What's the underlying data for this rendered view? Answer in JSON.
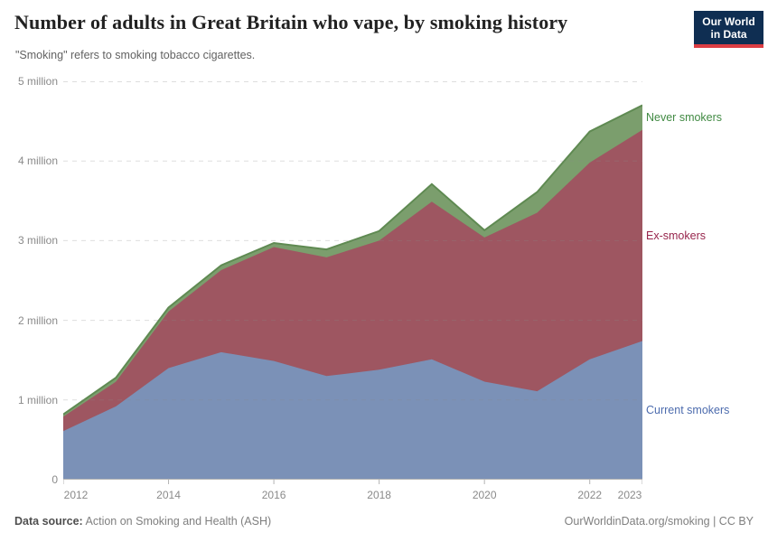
{
  "header": {
    "title": "Number of adults in Great Britain who vape, by smoking history",
    "subtitle": "\"Smoking\" refers to smoking tobacco cigarettes.",
    "logo": {
      "line1": "Our World",
      "line2": "in Data",
      "bg_color": "#0f2e52",
      "accent_color": "#dc3d43"
    }
  },
  "chart_data": {
    "type": "area",
    "stacked": true,
    "title": "Number of adults in Great Britain who vape, by smoking history",
    "x": [
      2012,
      2013,
      2014,
      2015,
      2016,
      2017,
      2018,
      2019,
      2020,
      2021,
      2022,
      2023
    ],
    "series": [
      {
        "name": "Current smokers",
        "color": "#7b91b7",
        "label_color": "#4d6cae",
        "values": [
          0.61,
          0.92,
          1.4,
          1.6,
          1.49,
          1.3,
          1.38,
          1.51,
          1.23,
          1.11,
          1.51,
          1.74
        ]
      },
      {
        "name": "Ex-smokers",
        "color": "#9e5661",
        "label_color": "#97254c",
        "values": [
          0.18,
          0.31,
          0.71,
          1.03,
          1.43,
          1.49,
          1.62,
          1.98,
          1.81,
          2.24,
          2.47,
          2.65
        ]
      },
      {
        "name": "Never smokers",
        "color": "#7b9e6d",
        "label_color": "#418a43",
        "edge_color": "#5f8a52",
        "values": [
          0.03,
          0.05,
          0.05,
          0.06,
          0.05,
          0.1,
          0.12,
          0.22,
          0.09,
          0.26,
          0.39,
          0.31
        ]
      }
    ],
    "units": "million",
    "ylim": [
      0,
      5
    ],
    "yticks": [
      "0",
      "1 million",
      "2 million",
      "3 million",
      "4 million",
      "5 million"
    ],
    "xticks": [
      2012,
      2014,
      2016,
      2018,
      2020,
      2022,
      2023
    ],
    "grid": "horizontal-dashed",
    "grid_color": "#8a8a8a",
    "axis_color": "#b3b3b3",
    "legend_position": "right"
  },
  "footer": {
    "source_label": "Data source:",
    "source_value": " Action on Smoking and Health (ASH)",
    "credit": "OurWorldinData.org/smoking | CC BY"
  }
}
